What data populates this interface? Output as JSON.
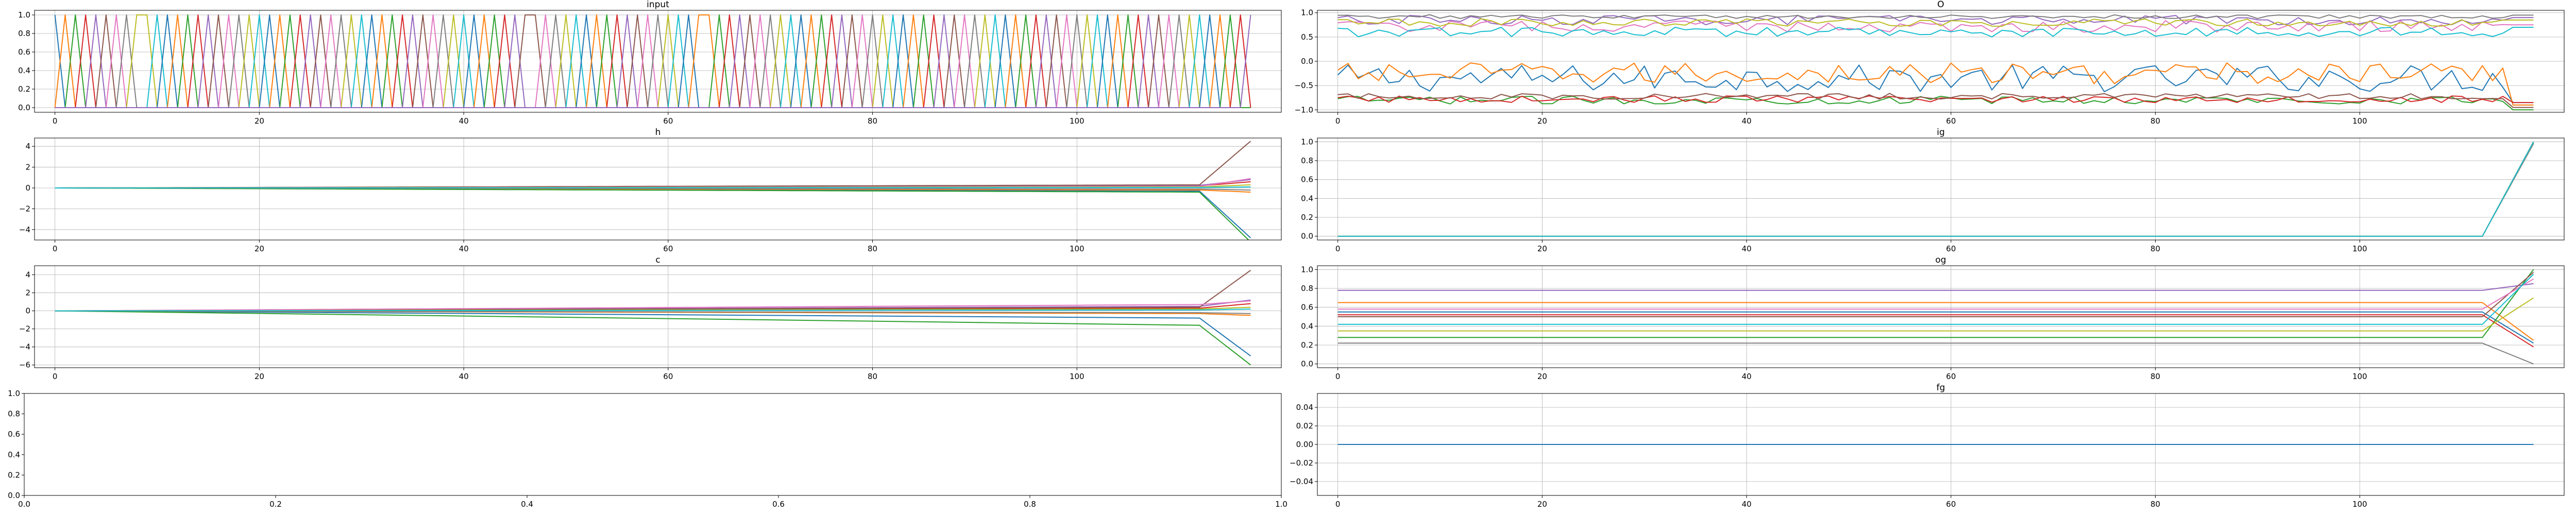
{
  "palette": [
    "#1f77b4",
    "#ff7f0e",
    "#2ca02c",
    "#d62728",
    "#9467bd",
    "#8c564b",
    "#e377c2",
    "#7f7f7f",
    "#bcbd22",
    "#17becf"
  ],
  "chart_data": [
    {
      "id": "input",
      "type": "line",
      "title": "input",
      "xlim": [
        -2,
        120
      ],
      "ylim": [
        -0.05,
        1.05
      ],
      "xticks": [
        0,
        20,
        40,
        60,
        80,
        100
      ],
      "yticks": [
        0.0,
        0.2,
        0.4,
        0.6,
        0.8,
        1.0
      ],
      "ytick_labels": [
        "0.0",
        "0.2",
        "0.4",
        "0.6",
        "0.8",
        "1.0"
      ],
      "grid": true,
      "series_kind": "one_hot",
      "x_range": [
        0,
        117
      ],
      "hot_index": [
        0,
        1,
        2,
        3,
        4,
        5,
        6,
        7,
        8,
        8,
        9,
        10,
        11,
        12,
        13,
        14,
        15,
        16,
        17,
        18,
        19,
        20,
        21,
        22,
        23,
        24,
        25,
        26,
        27,
        28,
        29,
        30,
        31,
        32,
        33,
        34,
        35,
        36,
        37,
        38,
        39,
        40,
        41,
        42,
        43,
        44,
        45,
        45,
        46,
        47,
        48,
        49,
        50,
        51,
        52,
        53,
        54,
        55,
        56,
        57,
        58,
        59,
        60,
        61,
        61,
        62,
        63,
        64,
        65,
        66,
        67,
        68,
        69,
        70,
        71,
        72,
        73,
        74,
        75,
        76,
        77,
        78,
        79,
        80,
        81,
        82,
        83,
        84,
        85,
        86,
        87,
        88,
        89,
        90,
        91,
        92,
        93,
        94,
        95,
        96,
        97,
        98,
        99,
        100,
        101,
        102,
        103,
        104,
        105,
        106,
        107,
        108,
        109,
        110,
        111,
        112,
        113,
        114
      ]
    },
    {
      "id": "o",
      "type": "line",
      "title": "O",
      "xlim": [
        -2,
        120
      ],
      "ylim": [
        -1.05,
        1.05
      ],
      "xticks": [
        0,
        20,
        40,
        60,
        80,
        100
      ],
      "yticks": [
        -1.0,
        -0.5,
        0.0,
        0.5,
        1.0
      ],
      "ytick_labels": [
        "−1.0",
        "−0.5",
        "0.0",
        "0.5",
        "1.0"
      ],
      "grid": true,
      "series_kind": "noisy",
      "x_range": [
        0,
        117
      ],
      "series": [
        {
          "base": -0.35,
          "amp": 0.28,
          "end": -0.85
        },
        {
          "base": -0.25,
          "amp": 0.22,
          "end": -0.9
        },
        {
          "base": -0.8,
          "amp": 0.08,
          "end": -1.0
        },
        {
          "base": -0.78,
          "amp": 0.07,
          "end": -0.85
        },
        {
          "base": 0.85,
          "amp": 0.1,
          "end": 0.9
        },
        {
          "base": -0.72,
          "amp": 0.06,
          "end": -0.95
        },
        {
          "base": 0.72,
          "amp": 0.12,
          "end": 0.75
        },
        {
          "base": 0.92,
          "amp": 0.04,
          "end": 0.95
        },
        {
          "base": 0.8,
          "amp": 0.08,
          "end": 0.85
        },
        {
          "base": 0.6,
          "amp": 0.1,
          "end": 0.7
        }
      ]
    },
    {
      "id": "h",
      "type": "line",
      "title": "h",
      "xlim": [
        -2,
        120
      ],
      "ylim": [
        -5.0,
        4.8
      ],
      "xticks": [
        0,
        20,
        40,
        60,
        80,
        100
      ],
      "yticks": [
        -4,
        -2,
        0,
        2,
        4
      ],
      "ytick_labels": [
        "−4",
        "−2",
        "0",
        "2",
        "4"
      ],
      "grid": true,
      "series_kind": "ramp",
      "x_range": [
        0,
        117
      ],
      "knee": 112,
      "series": [
        {
          "pre": -0.3,
          "end": -4.8
        },
        {
          "pre": -0.2,
          "end": -0.4
        },
        {
          "pre": -0.4,
          "end": -5.2
        },
        {
          "pre": 0.2,
          "end": 0.6
        },
        {
          "pre": 0.25,
          "end": 0.8
        },
        {
          "pre": 0.3,
          "end": 4.5
        },
        {
          "pre": 0.15,
          "end": 0.9
        },
        {
          "pre": -0.1,
          "end": -0.2
        },
        {
          "pre": 0.1,
          "end": 0.3
        },
        {
          "pre": 0.05,
          "end": 0.1
        }
      ]
    },
    {
      "id": "ig",
      "type": "line",
      "title": "ig",
      "xlim": [
        -2,
        120
      ],
      "ylim": [
        -0.04,
        1.04
      ],
      "xticks": [
        0,
        20,
        40,
        60,
        80,
        100
      ],
      "yticks": [
        0.0,
        0.2,
        0.4,
        0.6,
        0.8,
        1.0
      ],
      "ytick_labels": [
        "0.0",
        "0.2",
        "0.4",
        "0.6",
        "0.8",
        "1.0"
      ],
      "grid": true,
      "series_kind": "ramp",
      "x_range": [
        0,
        117
      ],
      "knee": 112,
      "series": [
        {
          "pre": 0.0,
          "end": 1.0
        },
        {
          "pre": 0.0,
          "end": 1.0
        },
        {
          "pre": 0.0,
          "end": 0.99
        },
        {
          "pre": 0.0,
          "end": 1.0
        },
        {
          "pre": 0.0,
          "end": 1.0
        },
        {
          "pre": 0.0,
          "end": 1.0
        },
        {
          "pre": 0.0,
          "end": 1.0
        },
        {
          "pre": 0.0,
          "end": 0.98
        },
        {
          "pre": 0.0,
          "end": 1.0
        },
        {
          "pre": 0.0,
          "end": 1.0
        }
      ]
    },
    {
      "id": "c",
      "type": "line",
      "title": "c",
      "xlim": [
        -2,
        120
      ],
      "ylim": [
        -6.3,
        5.0
      ],
      "xticks": [
        0,
        20,
        40,
        60,
        80,
        100
      ],
      "yticks": [
        -6,
        -4,
        -2,
        0,
        2,
        4
      ],
      "ytick_labels": [
        "−6",
        "−4",
        "−2",
        "0",
        "2",
        "4"
      ],
      "grid": true,
      "series_kind": "ramp",
      "x_range": [
        0,
        117
      ],
      "knee": 112,
      "series": [
        {
          "pre": -0.8,
          "end": -5.0
        },
        {
          "pre": -0.3,
          "end": -0.5
        },
        {
          "pre": -1.6,
          "end": -6.0
        },
        {
          "pre": 0.3,
          "end": 0.8
        },
        {
          "pre": 0.5,
          "end": 1.2
        },
        {
          "pre": 0.4,
          "end": 4.5
        },
        {
          "pre": 0.7,
          "end": 1.1
        },
        {
          "pre": -0.2,
          "end": -0.3
        },
        {
          "pre": 0.2,
          "end": 0.4
        },
        {
          "pre": 0.1,
          "end": 0.2
        }
      ]
    },
    {
      "id": "og",
      "type": "line",
      "title": "og",
      "xlim": [
        -2,
        120
      ],
      "ylim": [
        -0.04,
        1.04
      ],
      "xticks": [
        0,
        20,
        40,
        60,
        80,
        100
      ],
      "yticks": [
        0.0,
        0.2,
        0.4,
        0.6,
        0.8,
        1.0
      ],
      "ytick_labels": [
        "0.0",
        "0.2",
        "0.4",
        "0.6",
        "0.8",
        "1.0"
      ],
      "grid": true,
      "series_kind": "ramp",
      "x_range": [
        0,
        117
      ],
      "knee": 112,
      "series": [
        {
          "pre": 0.55,
          "end": 0.22
        },
        {
          "pre": 0.65,
          "end": 0.25
        },
        {
          "pre": 0.28,
          "end": 1.0
        },
        {
          "pre": 0.52,
          "end": 0.18
        },
        {
          "pre": 0.78,
          "end": 0.85
        },
        {
          "pre": 0.5,
          "end": 0.97
        },
        {
          "pre": 0.58,
          "end": 0.9
        },
        {
          "pre": 0.22,
          "end": 0.0
        },
        {
          "pre": 0.35,
          "end": 0.7
        },
        {
          "pre": 0.42,
          "end": 0.95
        }
      ]
    },
    {
      "id": "empty",
      "type": "line",
      "title": "",
      "xlim": [
        0.0,
        1.0
      ],
      "ylim": [
        0.0,
        1.0
      ],
      "xticks": [
        0.0,
        0.2,
        0.4,
        0.6,
        0.8,
        1.0
      ],
      "xtick_labels": [
        "0.0",
        "0.2",
        "0.4",
        "0.6",
        "0.8",
        "1.0"
      ],
      "yticks": [
        0.0,
        0.2,
        0.4,
        0.6,
        0.8,
        1.0
      ],
      "ytick_labels": [
        "0.0",
        "0.2",
        "0.4",
        "0.6",
        "0.8",
        "1.0"
      ],
      "grid": false,
      "series_kind": "none"
    },
    {
      "id": "fg",
      "type": "line",
      "title": "fg",
      "xlim": [
        -2,
        120
      ],
      "ylim": [
        -0.055,
        0.055
      ],
      "xticks": [
        0,
        20,
        40,
        60,
        80,
        100
      ],
      "yticks": [
        -0.04,
        -0.02,
        0.0,
        0.02,
        0.04
      ],
      "ytick_labels": [
        "−0.04",
        "−0.02",
        "0.00",
        "0.02",
        "0.04"
      ],
      "grid": true,
      "series_kind": "flat",
      "x_range": [
        0,
        117
      ],
      "value": 0.0
    }
  ]
}
